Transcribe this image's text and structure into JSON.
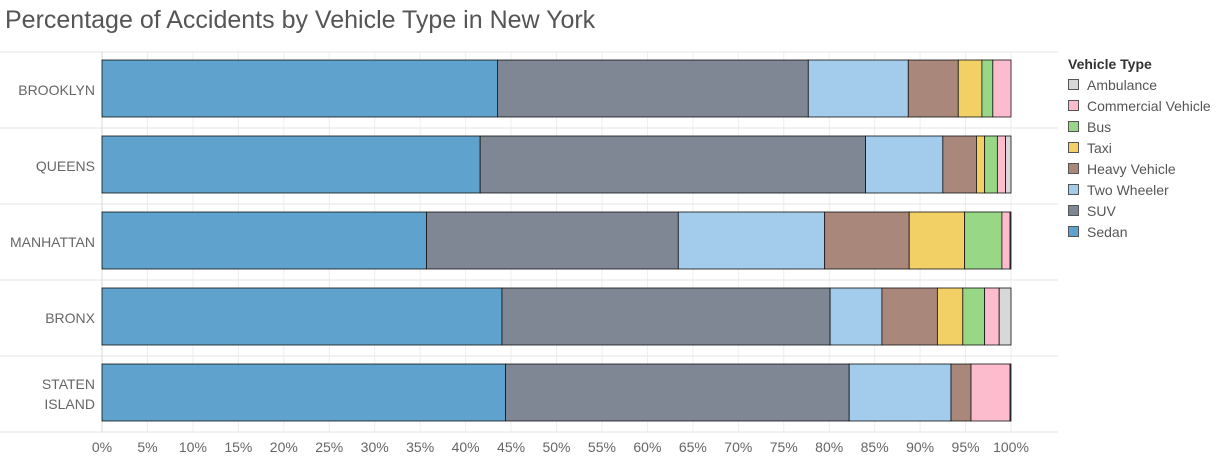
{
  "chart_data": {
    "type": "bar",
    "orientation": "horizontal",
    "stacked": true,
    "title": "Percentage of Accidents by Vehicle Type in New York",
    "xlabel": "",
    "ylabel": "",
    "xlim": [
      0,
      100
    ],
    "x_ticks": [
      "0%",
      "5%",
      "10%",
      "15%",
      "20%",
      "25%",
      "30%",
      "35%",
      "40%",
      "45%",
      "50%",
      "55%",
      "60%",
      "65%",
      "70%",
      "75%",
      "80%",
      "85%",
      "90%",
      "95%",
      "100%"
    ],
    "grid": true,
    "legend_position": "right",
    "legend_title": "Vehicle Type",
    "categories": [
      "BROOKLYN",
      "QUEENS",
      "MANHATTAN",
      "BRONX",
      "STATEN ISLAND"
    ],
    "category_lines": [
      [
        "BROOKLYN"
      ],
      [
        "QUEENS"
      ],
      [
        "MANHATTAN"
      ],
      [
        "BRONX"
      ],
      [
        "STATEN",
        "ISLAND"
      ]
    ],
    "series": [
      {
        "name": "Sedan",
        "color": "#5fa2ce",
        "values": [
          43.5,
          41.6,
          35.7,
          44.0,
          44.4
        ]
      },
      {
        "name": "SUV",
        "color": "#7f8794",
        "values": [
          34.2,
          42.4,
          27.7,
          36.1,
          37.8
        ]
      },
      {
        "name": "Two Wheeler",
        "color": "#a3cbeb",
        "values": [
          11.0,
          8.5,
          16.1,
          5.7,
          11.2
        ]
      },
      {
        "name": "Heavy Vehicle",
        "color": "#a9877b",
        "values": [
          5.5,
          3.7,
          9.3,
          6.1,
          2.2
        ]
      },
      {
        "name": "Taxi",
        "color": "#f2d066",
        "values": [
          2.6,
          0.9,
          6.1,
          2.8,
          0.0
        ]
      },
      {
        "name": "Bus",
        "color": "#98d785",
        "values": [
          1.2,
          1.4,
          4.1,
          2.4,
          0.0
        ]
      },
      {
        "name": "Commercial Vehicle",
        "color": "#fcbccd",
        "values": [
          2.0,
          0.9,
          0.9,
          1.6,
          4.3
        ]
      },
      {
        "name": "Ambulance",
        "color": "#d8d8d8",
        "values": [
          0.0,
          0.6,
          0.1,
          1.3,
          0.1
        ]
      }
    ],
    "legend_order": [
      "Ambulance",
      "Commercial Vehicle",
      "Bus",
      "Taxi",
      "Heavy Vehicle",
      "Two Wheeler",
      "SUV",
      "Sedan"
    ]
  }
}
